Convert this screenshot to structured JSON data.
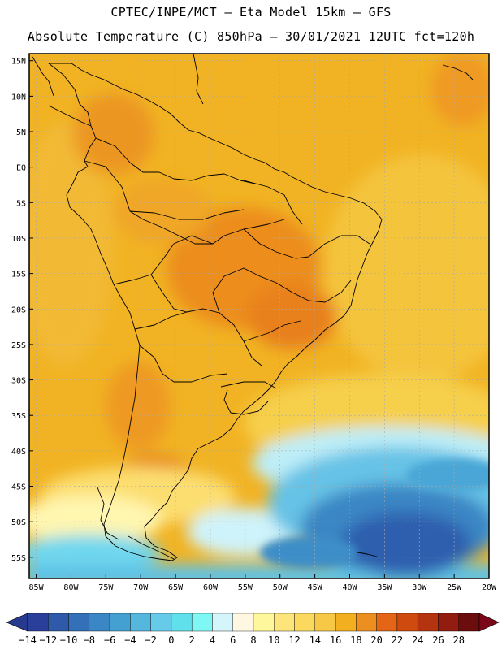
{
  "header": {
    "title_line1": "CPTEC/INPE/MCT –  Eta Model 15km – GFS",
    "title_line2": "Absolute Temperature (C) 850hPa – 30/01/2021 12UTC fct=120h"
  },
  "map": {
    "lat_labels": [
      "15N",
      "10N",
      "5N",
      "EQ",
      "5S",
      "10S",
      "15S",
      "20S",
      "25S",
      "30S",
      "35S",
      "40S",
      "45S",
      "50S",
      "55S"
    ],
    "lon_labels": [
      "85W",
      "80W",
      "75W",
      "70W",
      "65W",
      "60W",
      "55W",
      "50W",
      "45W",
      "40W",
      "35W",
      "30W",
      "25W",
      "20W"
    ],
    "lat_range": [
      -58,
      16
    ],
    "lon_range": [
      -86,
      -20
    ],
    "grid": true
  },
  "colorbar": {
    "labels": [
      "-14",
      "-12",
      "-10",
      "-8",
      "-6",
      "-4",
      "-2",
      "0",
      "2",
      "4",
      "6",
      "8",
      "10",
      "12",
      "14",
      "16",
      "18",
      "20",
      "22",
      "24",
      "26",
      "28"
    ],
    "colors": [
      "#2a3f9a",
      "#2f5aa9",
      "#3370b7",
      "#3b86c4",
      "#45a0d2",
      "#55b7de",
      "#66cbe8",
      "#5fe0ea",
      "#7ff7f4",
      "#d4f5fa",
      "#fff7e2",
      "#fff79c",
      "#fde57c",
      "#fbd95f",
      "#f7c845",
      "#f2af1f",
      "#ec8f20",
      "#e36515",
      "#cf4a0f",
      "#b53410",
      "#931c10",
      "#6b0d0d"
    ],
    "underflow_color": "#263a8f",
    "overflow_color": "#7a0818"
  }
}
